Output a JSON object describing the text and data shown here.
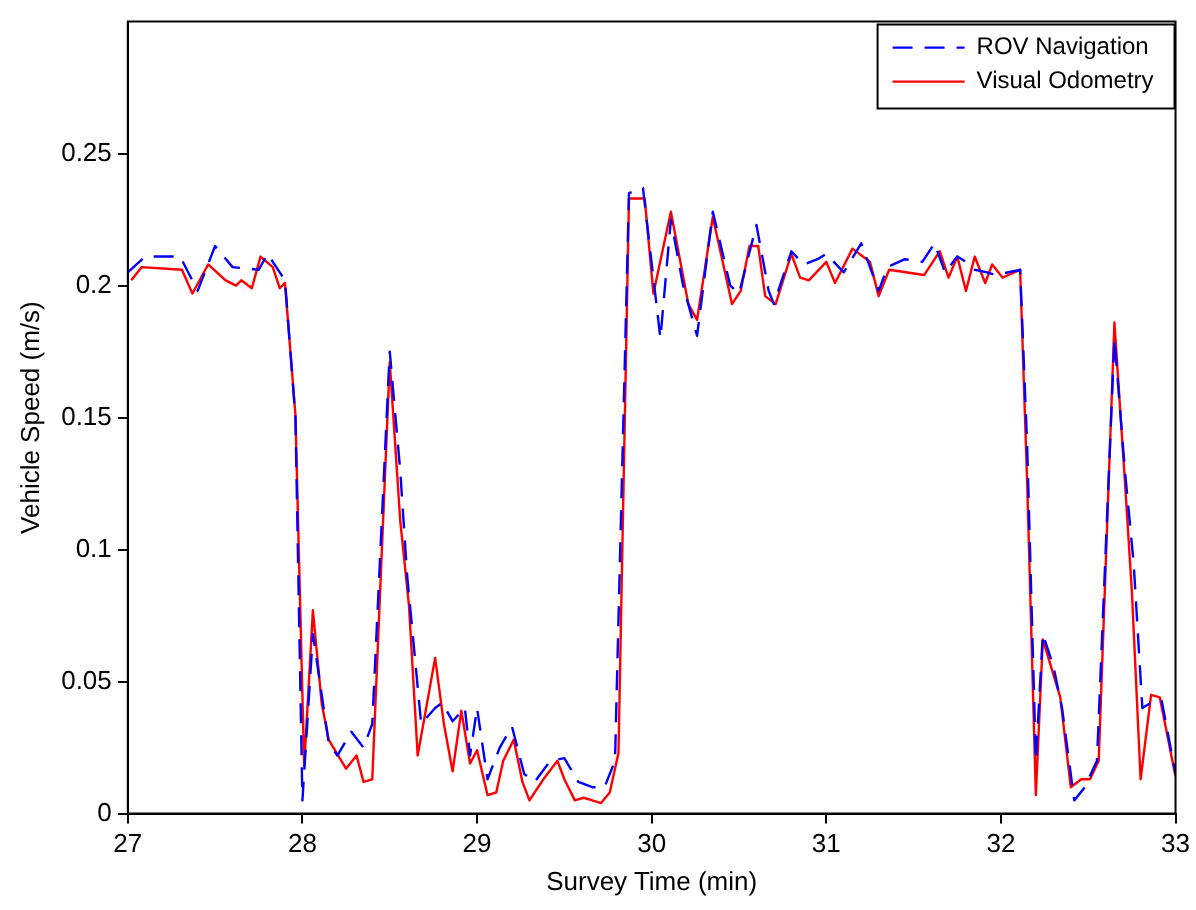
{
  "chart_data": {
    "type": "line",
    "xlabel": "Survey Time (min)",
    "ylabel": "Vehicle Speed (m/s)",
    "xlim": [
      27,
      33
    ],
    "xticks": [
      27,
      28,
      29,
      30,
      31,
      32,
      33
    ],
    "ylim": [
      0,
      0.3
    ],
    "yticks": [
      0,
      0.05,
      0.1,
      0.15,
      0.2,
      0.25
    ],
    "grid": false,
    "legend": "top right",
    "marker": "none",
    "series": [
      {
        "name": "ROV Navigation",
        "color": "#0000ff",
        "line_style": "dashed",
        "x": [
          27.0,
          27.1,
          27.3,
          27.4,
          27.5,
          27.6,
          27.75,
          27.8,
          27.9,
          27.96,
          28.0,
          28.06,
          28.15,
          28.2,
          28.28,
          28.35,
          28.4,
          28.5,
          28.56,
          28.6,
          28.68,
          28.76,
          28.8,
          28.86,
          28.93,
          28.96,
          29.0,
          29.06,
          29.13,
          29.2,
          29.27,
          29.33,
          29.42,
          29.5,
          29.58,
          29.66,
          29.73,
          29.79,
          29.87,
          29.95,
          30.05,
          30.11,
          30.18,
          30.26,
          30.35,
          30.45,
          30.5,
          30.6,
          30.67,
          30.7,
          30.8,
          30.87,
          30.95,
          31.0,
          31.1,
          31.2,
          31.3,
          31.35,
          31.45,
          31.55,
          31.62,
          31.68,
          31.75,
          31.8,
          31.85,
          31.92,
          31.97,
          32.11,
          32.15,
          32.2,
          32.24,
          32.3,
          32.35,
          32.42,
          32.48,
          32.55,
          32.65,
          32.71,
          32.76,
          32.81,
          32.86,
          32.92,
          33.0
        ],
        "values": [
          0.205,
          0.211,
          0.211,
          0.198,
          0.215,
          0.207,
          0.206,
          0.212,
          0.202,
          0.15,
          0.005,
          0.068,
          0.027,
          0.022,
          0.031,
          0.025,
          0.034,
          0.175,
          0.13,
          0.09,
          0.034,
          0.04,
          0.042,
          0.035,
          0.04,
          0.022,
          0.04,
          0.013,
          0.025,
          0.033,
          0.015,
          0.012,
          0.02,
          0.021,
          0.012,
          0.01,
          0.01,
          0.02,
          0.235,
          0.237,
          0.18,
          0.225,
          0.2,
          0.181,
          0.228,
          0.2,
          0.197,
          0.223,
          0.198,
          0.193,
          0.213,
          0.208,
          0.21,
          0.212,
          0.205,
          0.216,
          0.198,
          0.207,
          0.21,
          0.209,
          0.216,
          0.205,
          0.211,
          0.209,
          0.206,
          0.205,
          0.204,
          0.206,
          0.14,
          0.02,
          0.068,
          0.056,
          0.04,
          0.005,
          0.01,
          0.02,
          0.18,
          0.13,
          0.095,
          0.04,
          0.042,
          0.043,
          0.015
        ]
      },
      {
        "name": "Visual Odometry",
        "color": "#ff0000",
        "line_style": "solid",
        "x": [
          27.02,
          27.08,
          27.31,
          27.37,
          27.46,
          27.56,
          27.62,
          27.65,
          27.71,
          27.76,
          27.83,
          27.87,
          27.9,
          27.96,
          28.01,
          28.06,
          28.11,
          28.15,
          28.25,
          28.31,
          28.35,
          28.4,
          28.5,
          28.56,
          28.61,
          28.66,
          28.76,
          28.81,
          28.86,
          28.91,
          28.96,
          29.0,
          29.06,
          29.11,
          29.15,
          29.21,
          29.26,
          29.3,
          29.38,
          29.46,
          29.5,
          29.56,
          29.61,
          29.66,
          29.71,
          29.76,
          29.81,
          29.87,
          29.96,
          30.01,
          30.11,
          30.21,
          30.26,
          30.35,
          30.46,
          30.51,
          30.56,
          30.61,
          30.65,
          30.71,
          30.8,
          30.85,
          30.9,
          31.0,
          31.05,
          31.15,
          31.25,
          31.3,
          31.36,
          31.56,
          31.65,
          31.7,
          31.75,
          31.8,
          31.85,
          31.91,
          31.95,
          32.01,
          32.11,
          32.15,
          32.2,
          32.24,
          32.29,
          32.34,
          32.4,
          32.46,
          32.51,
          32.56,
          32.65,
          32.71,
          32.75,
          32.8,
          32.86,
          32.91,
          33.0
        ],
        "values": [
          0.202,
          0.207,
          0.206,
          0.197,
          0.208,
          0.202,
          0.2,
          0.202,
          0.199,
          0.211,
          0.207,
          0.199,
          0.201,
          0.151,
          0.018,
          0.077,
          0.042,
          0.028,
          0.017,
          0.022,
          0.012,
          0.013,
          0.171,
          0.111,
          0.079,
          0.022,
          0.059,
          0.034,
          0.016,
          0.039,
          0.019,
          0.024,
          0.007,
          0.008,
          0.02,
          0.028,
          0.012,
          0.005,
          0.013,
          0.02,
          0.013,
          0.005,
          0.006,
          0.005,
          0.004,
          0.008,
          0.023,
          0.233,
          0.233,
          0.197,
          0.228,
          0.193,
          0.187,
          0.226,
          0.193,
          0.198,
          0.215,
          0.215,
          0.196,
          0.193,
          0.212,
          0.203,
          0.202,
          0.209,
          0.201,
          0.214,
          0.209,
          0.196,
          0.206,
          0.204,
          0.213,
          0.203,
          0.211,
          0.198,
          0.211,
          0.201,
          0.208,
          0.203,
          0.206,
          0.126,
          0.007,
          0.066,
          0.055,
          0.044,
          0.01,
          0.013,
          0.013,
          0.02,
          0.186,
          0.126,
          0.084,
          0.013,
          0.045,
          0.044,
          0.014
        ]
      }
    ]
  }
}
